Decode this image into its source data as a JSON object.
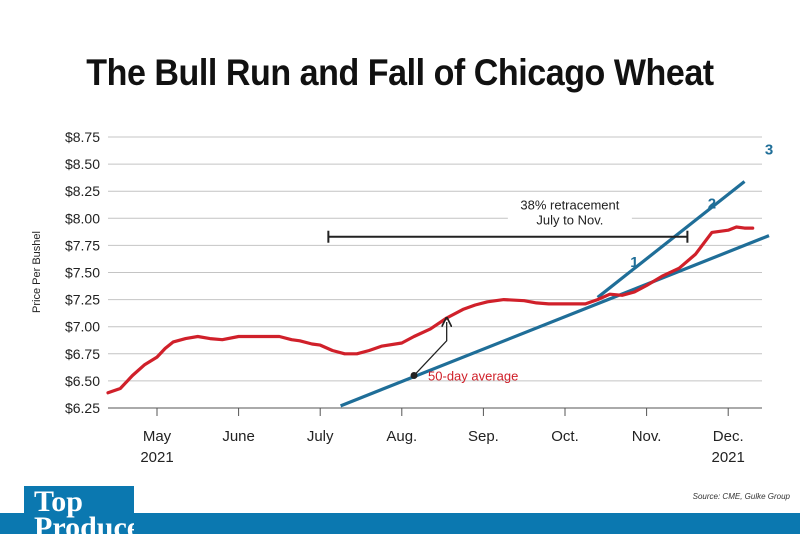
{
  "chart_data": {
    "type": "line",
    "title": "The Bull Run and Fall of Chicago Wheat",
    "ylabel": "Price Per Bushel",
    "xlabel": "",
    "ylim": [
      6.25,
      8.75
    ],
    "yticks": [
      "$8.75",
      "$8.50",
      "$8.25",
      "$8.00",
      "$7.75",
      "$7.50",
      "$7.25",
      "$7.00",
      "$6.75",
      "$6.50",
      "$6.25"
    ],
    "xticks": [
      {
        "month": "May",
        "year": "2021"
      },
      {
        "month": "June",
        "year": ""
      },
      {
        "month": "July",
        "year": ""
      },
      {
        "month": "Aug.",
        "year": ""
      },
      {
        "month": "Sep.",
        "year": ""
      },
      {
        "month": "Oct.",
        "year": ""
      },
      {
        "month": "Nov.",
        "year": ""
      },
      {
        "month": "Dec.",
        "year": "2021"
      }
    ],
    "grid": true,
    "series": [
      {
        "name": "50-day average",
        "color": "#d0202a",
        "x": [
          -0.6,
          -0.45,
          -0.3,
          -0.15,
          0.0,
          0.1,
          0.2,
          0.35,
          0.5,
          0.65,
          0.8,
          1.0,
          1.15,
          1.3,
          1.5,
          1.65,
          1.75,
          1.9,
          2.0,
          2.15,
          2.3,
          2.45,
          2.6,
          2.75,
          3.0,
          3.15,
          3.35,
          3.55,
          3.75,
          3.9,
          4.05,
          4.25,
          4.5,
          4.65,
          4.8,
          4.95,
          5.1,
          5.25,
          5.4,
          5.55,
          5.7,
          5.85,
          6.0,
          6.2,
          6.4,
          6.6,
          6.8,
          7.0,
          7.1,
          7.2,
          7.3
        ],
        "y": [
          6.39,
          6.43,
          6.55,
          6.65,
          6.72,
          6.8,
          6.86,
          6.89,
          6.91,
          6.89,
          6.88,
          6.91,
          6.91,
          6.91,
          6.91,
          6.88,
          6.87,
          6.84,
          6.83,
          6.78,
          6.75,
          6.75,
          6.78,
          6.82,
          6.85,
          6.91,
          6.98,
          7.08,
          7.16,
          7.2,
          7.23,
          7.25,
          7.24,
          7.22,
          7.21,
          7.21,
          7.21,
          7.21,
          7.25,
          7.3,
          7.29,
          7.32,
          7.38,
          7.47,
          7.54,
          7.67,
          7.87,
          7.89,
          7.92,
          7.91,
          7.91
        ]
      }
    ],
    "trendlines": [
      {
        "label": "1",
        "x": [
          2.25,
          7.5
        ],
        "y": [
          6.27,
          7.84
        ],
        "color": "#1f6e98"
      },
      {
        "label": "2",
        "x": [
          5.4,
          7.2
        ],
        "y": [
          7.27,
          8.34
        ],
        "color": "#1f6e98"
      }
    ],
    "trend_labels": [
      {
        "text": "1",
        "x": 5.85,
        "y": 7.55
      },
      {
        "text": "2",
        "x": 6.8,
        "y": 8.09
      },
      {
        "text": "3",
        "x": 7.5,
        "y": 8.59
      }
    ],
    "annotations": {
      "retracement": {
        "line1": "38% retracement",
        "line2": "July to Nov.",
        "x_start": 2.1,
        "x_end": 6.5,
        "y": 7.83
      },
      "ma_label": {
        "text": "50-day average",
        "x": 3.15,
        "y": 6.55
      },
      "ma_arrow_target": {
        "x": 3.55,
        "y": 7.08
      }
    },
    "source": "Source: CME, Gulke Group"
  },
  "logo": {
    "line1": "Top",
    "line2": "Producer"
  }
}
